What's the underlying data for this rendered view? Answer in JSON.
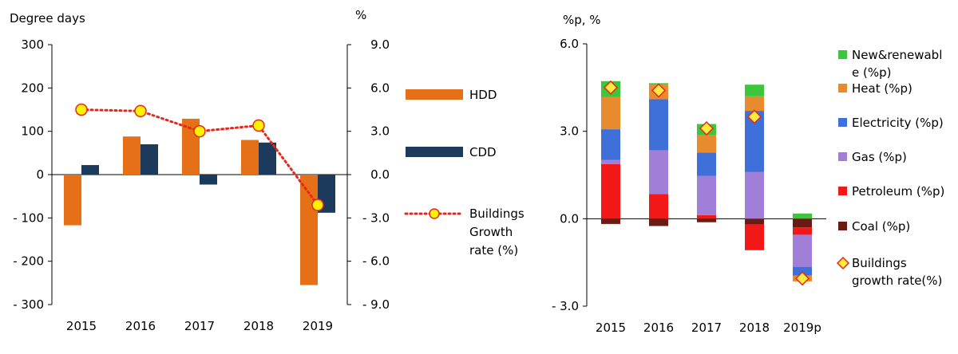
{
  "colors": {
    "hdd": "#E57018",
    "cdd": "#1B3A5C",
    "growth_line": "#E8261B",
    "growth_marker": "#FFF200",
    "growth_marker_edge": "#E8261B",
    "renewable": "#3CC63C",
    "heat": "#E88A2E",
    "electricity": "#3F6FD8",
    "gas": "#A07FD8",
    "petroleum": "#F21818",
    "coal": "#6B1A14",
    "diamond_fill": "#FFEB3B",
    "diamond_edge": "#E8261B"
  },
  "chart_data": [
    {
      "type": "bar",
      "left_axis_title": "Degree days",
      "right_axis_title": "%",
      "categories": [
        "2015",
        "2016",
        "2017",
        "2018",
        "2019"
      ],
      "ylim": [
        -300,
        300
      ],
      "y_ticks": [
        300,
        200,
        100,
        0,
        -100,
        -200,
        -300
      ],
      "y_tick_labels": [
        "300",
        "200",
        "100",
        "0",
        "- 100",
        "- 200",
        "- 300"
      ],
      "y2lim": [
        -9.0,
        9.0
      ],
      "y2_ticks": [
        9.0,
        6.0,
        3.0,
        0.0,
        -3.0,
        -6.0,
        -9.0
      ],
      "y2_tick_labels": [
        "9.0",
        "6.0",
        "3.0",
        "0.0",
        "- 3.0",
        "- 6.0",
        "- 9.0"
      ],
      "series": [
        {
          "name": "HDD",
          "kind": "bar",
          "values": [
            -117,
            88,
            129,
            80,
            -255
          ]
        },
        {
          "name": "CDD",
          "kind": "bar",
          "values": [
            22,
            70,
            -23,
            74,
            -88
          ]
        },
        {
          "name": "Buildings Growth rate (%)",
          "kind": "line",
          "axis": "right",
          "values": [
            4.5,
            4.4,
            3.0,
            3.4,
            -2.1
          ]
        }
      ],
      "legend": [
        {
          "lines": [
            "HDD"
          ]
        },
        {
          "lines": [
            "CDD"
          ]
        },
        {
          "lines": [
            "Buildings",
            "Growth",
            "rate (%)"
          ]
        }
      ],
      "legend_position": "right"
    },
    {
      "type": "bar",
      "stacked": true,
      "axis_title": "%p, %",
      "categories": [
        "2015",
        "2016",
        "2017",
        "2018",
        "2019p"
      ],
      "ylim": [
        -3.0,
        6.0
      ],
      "y_ticks": [
        6.0,
        3.0,
        0.0,
        -3.0
      ],
      "y_tick_labels": [
        "6.0",
        "3.0",
        "0.0",
        "- 3.0"
      ],
      "series": [
        {
          "name": "Coal (%p)",
          "values": [
            -0.18,
            -0.25,
            -0.12,
            -0.2,
            -0.3
          ]
        },
        {
          "name": "Petroleum (%p)",
          "values": [
            1.87,
            0.85,
            0.12,
            -0.88,
            -0.25
          ]
        },
        {
          "name": "Gas (%p)",
          "values": [
            0.15,
            1.5,
            1.35,
            1.6,
            -1.1
          ]
        },
        {
          "name": "Electricity (%p)",
          "values": [
            1.05,
            1.75,
            0.8,
            2.1,
            -0.3
          ]
        },
        {
          "name": "Heat (%p)",
          "values": [
            1.1,
            0.5,
            0.6,
            0.5,
            -0.2
          ]
        },
        {
          "name": "New&renewable (%p)",
          "values": [
            0.55,
            0.05,
            0.38,
            0.4,
            0.18
          ]
        }
      ],
      "growth_rate": {
        "name": "Buildings growth rate(%)",
        "values": [
          4.5,
          4.4,
          3.1,
          3.5,
          -2.05
        ]
      },
      "legend": [
        {
          "lines": [
            "New&renewabl",
            "e (%p)"
          ]
        },
        {
          "lines": [
            "Heat (%p)"
          ]
        },
        {
          "lines": [
            "Electricity (%p)"
          ]
        },
        {
          "lines": [
            "Gas (%p)"
          ]
        },
        {
          "lines": [
            "Petroleum (%p)"
          ]
        },
        {
          "lines": [
            "Coal (%p)"
          ]
        },
        {
          "lines": [
            "Buildings",
            "growth rate(%)"
          ]
        }
      ],
      "legend_position": "right"
    }
  ]
}
